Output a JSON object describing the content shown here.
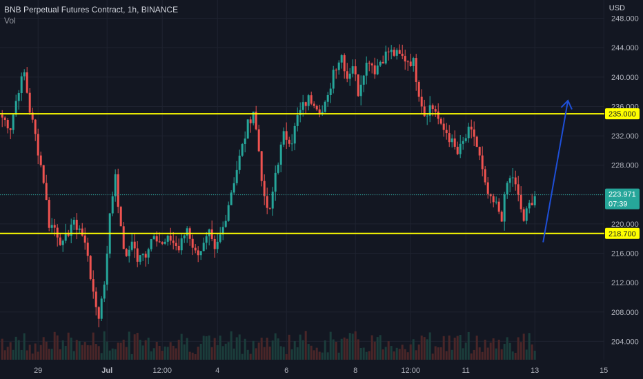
{
  "header": {
    "title": "BNB Perpetual Futures Contract, 1h, BINANCE",
    "indicator": "Vol",
    "currency": "USD"
  },
  "chart_data": {
    "type": "candlestick",
    "title": "BNB Perpetual Futures Contract, 1h, BINANCE",
    "ylim": [
      201.5,
      250.5
    ],
    "y_ticks": [
      204,
      208,
      212,
      216,
      220,
      224,
      228,
      232,
      236,
      240,
      244,
      248
    ],
    "y_tick_labels": [
      "204.000",
      "208.000",
      "212.000",
      "216.000",
      "220.000",
      "224.000",
      "228.000",
      "232.000",
      "236.000",
      "240.000",
      "244.000",
      "248.000"
    ],
    "x_tick_labels": [
      "29",
      "Jul",
      "12:00",
      "4",
      "6",
      "8",
      "12:00",
      "11",
      "13",
      "15"
    ],
    "x_tick_index": [
      13,
      38,
      58,
      78,
      103,
      128,
      148,
      168,
      193,
      218
    ],
    "horizontal_levels": [
      {
        "label": "235.000",
        "value": 235.0,
        "color": "#ffff00"
      },
      {
        "label": "218.700",
        "value": 218.7,
        "color": "#ffff00"
      }
    ],
    "last_price": {
      "value": 223.971,
      "label": "223.971",
      "countdown": "07:39",
      "color": "#26a69a"
    },
    "arrow": {
      "from": [
        196,
        217.5
      ],
      "to": [
        205,
        236.8
      ],
      "color": "#1e4fd8"
    },
    "series": [
      {
        "name": "",
        "type": "close",
        "waypoints": [
          [
            0,
            234.5
          ],
          [
            3,
            233.2
          ],
          [
            6,
            238.5
          ],
          [
            8,
            240.5
          ],
          [
            10,
            235.5
          ],
          [
            12,
            232
          ],
          [
            15,
            226
          ],
          [
            17,
            220
          ],
          [
            19,
            219.5
          ],
          [
            22,
            217
          ],
          [
            25,
            220
          ],
          [
            28,
            219.5
          ],
          [
            31,
            216
          ],
          [
            33,
            210
          ],
          [
            35,
            207.5
          ],
          [
            37,
            212
          ],
          [
            39,
            221
          ],
          [
            41,
            227
          ],
          [
            43,
            219
          ],
          [
            45,
            215
          ],
          [
            47,
            218
          ],
          [
            49,
            215
          ],
          [
            52,
            216
          ],
          [
            55,
            219
          ],
          [
            58,
            217
          ],
          [
            61,
            218
          ],
          [
            64,
            216.5
          ],
          [
            67,
            219.5
          ],
          [
            70,
            216
          ],
          [
            73,
            217
          ],
          [
            75,
            218.5
          ],
          [
            77,
            216
          ],
          [
            80,
            219.5
          ],
          [
            83,
            224.5
          ],
          [
            86,
            229
          ],
          [
            89,
            233.5
          ],
          [
            91,
            235.5
          ],
          [
            93,
            230
          ],
          [
            95,
            223
          ],
          [
            97,
            221.5
          ],
          [
            99,
            227
          ],
          [
            102,
            232
          ],
          [
            105,
            231.5
          ],
          [
            107,
            234.5
          ],
          [
            109,
            236
          ],
          [
            111,
            237
          ],
          [
            113,
            236.8
          ],
          [
            116,
            235.2
          ],
          [
            118,
            237
          ],
          [
            120,
            241
          ],
          [
            123,
            243
          ],
          [
            125,
            240
          ],
          [
            127,
            241.8
          ],
          [
            129,
            238
          ],
          [
            131,
            241
          ],
          [
            133,
            242.5
          ],
          [
            135,
            241
          ],
          [
            137,
            242.2
          ],
          [
            140,
            243.5
          ],
          [
            143,
            243
          ],
          [
            146,
            242.5
          ],
          [
            149,
            242
          ],
          [
            151,
            238
          ],
          [
            153,
            235
          ],
          [
            155,
            236
          ],
          [
            157,
            235.5
          ],
          [
            159,
            233
          ],
          [
            161,
            232.5
          ],
          [
            163,
            231
          ],
          [
            165,
            229.5
          ],
          [
            167,
            231
          ],
          [
            169,
            232.5
          ],
          [
            171,
            232
          ],
          [
            173,
            229
          ],
          [
            175,
            225
          ],
          [
            177,
            223
          ],
          [
            179,
            222.5
          ],
          [
            181,
            221
          ],
          [
            183,
            225.5
          ],
          [
            185,
            226.5
          ],
          [
            187,
            223.5
          ],
          [
            189,
            220.5
          ],
          [
            191,
            222.5
          ],
          [
            193,
            224
          ]
        ]
      },
      {
        "name": "",
        "type": "volume",
        "note": "volume bars at bottom, values not readable"
      }
    ]
  },
  "colors": {
    "background": "#131722",
    "grid": "#1f2330",
    "up": "#26a69a",
    "down": "#ef5350",
    "level": "#ffff00",
    "arrow": "#1e4fd8"
  }
}
